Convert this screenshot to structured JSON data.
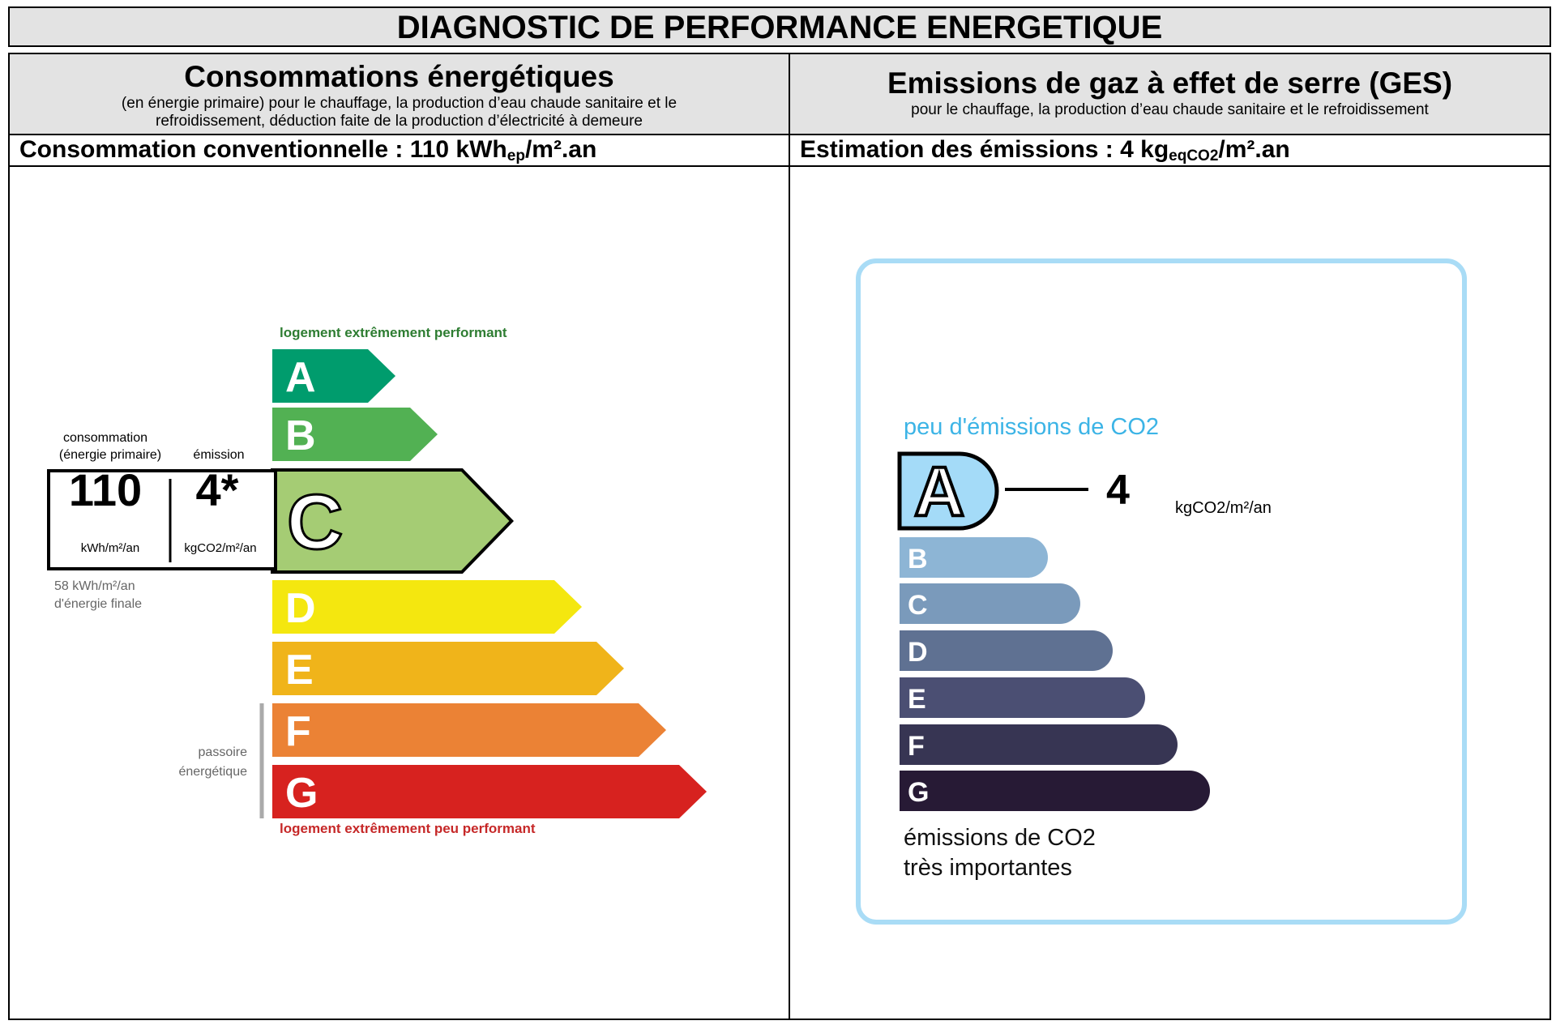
{
  "title": "DIAGNOSTIC DE PERFORMANCE ENERGETIQUE",
  "left": {
    "heading": "Consommations énergétiques",
    "subheading_line1": "(en énergie primaire) pour le chauffage, la production d’eau chaude sanitaire et le",
    "subheading_line2": "refroidissement, déduction faite de la production d’électricité à demeure",
    "value_prefix": "Consommation conventionnelle : 110 kWh",
    "value_sub": "ep",
    "value_suffix": "/m².an"
  },
  "right": {
    "heading": "Emissions de gaz à effet de serre (GES)",
    "subheading": "pour le chauffage, la production d’eau chaude sanitaire et le refroidissement",
    "value_prefix": "Estimation des émissions : 4 kg",
    "value_sub": "eqCO2",
    "value_suffix": "/m².an"
  },
  "energy_label": {
    "top_label": "logement extrêmement performant",
    "bottom_label": "logement extrêmement peu performant",
    "consumption_caption": "consommation",
    "consumption_caption2": "(énergie primaire)",
    "emission_caption": "émission",
    "consumption_value": "110",
    "consumption_unit": "kWh/m²/an",
    "emission_value": "4*",
    "emission_unit": "kgCO2/m²/an",
    "final_energy_line1": "58 kWh/m²/an",
    "final_energy_line2": "d'énergie finale",
    "passoire_line1": "passoire",
    "passoire_line2": "énergétique",
    "current_class": "C",
    "classes": [
      {
        "letter": "A",
        "color": "#009c6d"
      },
      {
        "letter": "B",
        "color": "#52b153"
      },
      {
        "letter": "C",
        "color": "#a5cc74"
      },
      {
        "letter": "D",
        "color": "#f4e70f"
      },
      {
        "letter": "E",
        "color": "#f0b41a"
      },
      {
        "letter": "F",
        "color": "#eb8235"
      },
      {
        "letter": "G",
        "color": "#d7221f"
      }
    ]
  },
  "ges_label": {
    "top_label": "peu d'émissions de CO2",
    "bottom_label_line1": "émissions de CO2",
    "bottom_label_line2": "très importantes",
    "current_class": "A",
    "value": "4",
    "unit": "kgCO2/m²/an",
    "classes": [
      {
        "letter": "A",
        "color": "#a4dbf8"
      },
      {
        "letter": "B",
        "color": "#8db5d5"
      },
      {
        "letter": "C",
        "color": "#7a9abb"
      },
      {
        "letter": "D",
        "color": "#5f7192"
      },
      {
        "letter": "E",
        "color": "#4b4f73"
      },
      {
        "letter": "F",
        "color": "#373553"
      },
      {
        "letter": "G",
        "color": "#271a35"
      }
    ]
  }
}
